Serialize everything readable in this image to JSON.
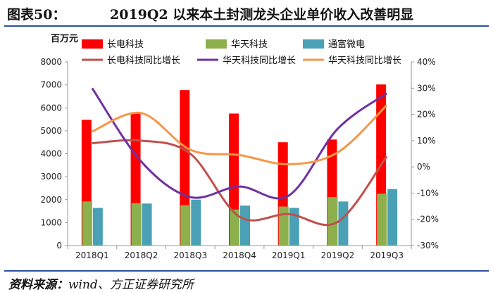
{
  "header": {
    "label": "图表50：",
    "title": "2019Q2 以来本土封测龙头企业单价收入改善明显"
  },
  "source": {
    "prefix": "资料来源：",
    "text": "wind、方正证券研究所"
  },
  "colors": {
    "jcet_bar": "#ff0000",
    "tianshui_bar": "#8db04d",
    "tfme_bar": "#4aa0b5",
    "jcet_line": "#c0504d",
    "tianshui_line": "#7030a0",
    "tianshui_yoy_line": "#f79646",
    "rule": "#2b4fa0"
  },
  "chart_data": {
    "type": "bar+line",
    "unit_label": "百万元",
    "categories": [
      "2018Q1",
      "2018Q2",
      "2018Q3",
      "2018Q4",
      "2019Q1",
      "2019Q2",
      "2019Q3"
    ],
    "left_axis": {
      "min": 0,
      "max": 8000,
      "step": 1000,
      "ticks": [
        "0",
        "1000",
        "2000",
        "3000",
        "4000",
        "5000",
        "6000",
        "7000",
        "8000"
      ]
    },
    "right_axis": {
      "min": -30,
      "max": 40,
      "step": 10,
      "ticks": [
        "-30%",
        "-20%",
        "-10%",
        "0%",
        "10%",
        "20%",
        "30%",
        "40%"
      ]
    },
    "bar_series": [
      {
        "name": "长电科技",
        "values": [
          5480,
          5800,
          6770,
          5750,
          4500,
          4620,
          7020
        ]
      },
      {
        "name": "华天科技",
        "values": [
          1920,
          1850,
          1760,
          1570,
          1700,
          2110,
          2260
        ]
      },
      {
        "name": "通富微电",
        "values": [
          1640,
          1830,
          2000,
          1740,
          1640,
          1920,
          2460
        ]
      }
    ],
    "line_series": [
      {
        "name": "长电科技同比增长",
        "values": [
          9.0,
          10.0,
          5.0,
          -19.0,
          -18.0,
          -21.0,
          4.0
        ]
      },
      {
        "name": "华天科技同比增长",
        "values": [
          30.0,
          2.0,
          -11.5,
          -7.5,
          -11.0,
          14.5,
          28.0
        ]
      },
      {
        "name": "华天科技同比增长",
        "values": [
          13.5,
          20.5,
          6.5,
          4.5,
          1.0,
          5.5,
          23.5
        ]
      }
    ]
  }
}
